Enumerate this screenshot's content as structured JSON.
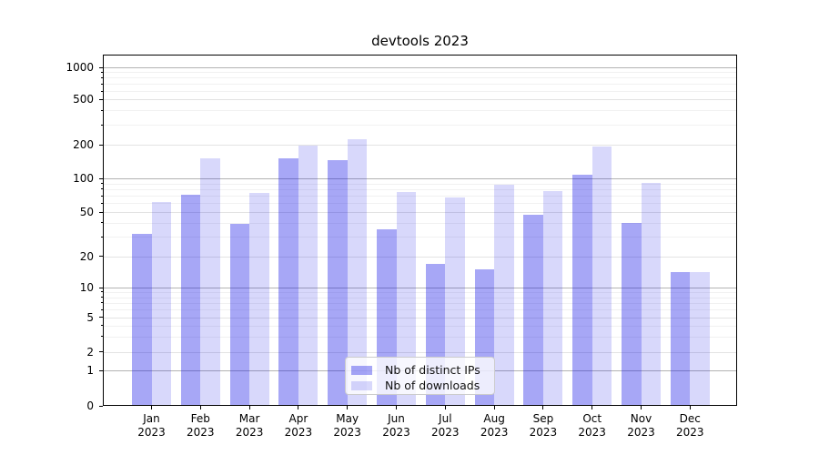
{
  "title": "devtools 2023",
  "chart_data": {
    "type": "bar",
    "title": "devtools 2023",
    "categories": [
      "Jan 2023",
      "Feb 2023",
      "Mar 2023",
      "Apr 2023",
      "May 2023",
      "Jun 2023",
      "Jul 2023",
      "Aug 2023",
      "Sep 2023",
      "Oct 2023",
      "Nov 2023",
      "Dec 2023"
    ],
    "x_tick_months": [
      "Jan",
      "Feb",
      "Mar",
      "Apr",
      "May",
      "Jun",
      "Jul",
      "Aug",
      "Sep",
      "Oct",
      "Nov",
      "Dec"
    ],
    "x_tick_year": "2023",
    "series": [
      {
        "name": "Nb of distinct IPs",
        "color_hex": "#a7a7f6",
        "fill": "rgba(10,10,230,0.36)",
        "values": [
          32,
          71,
          39,
          151,
          146,
          35,
          17,
          15,
          47,
          108,
          40,
          14
        ]
      },
      {
        "name": "Nb of downloads",
        "color_hex": "#d8d8fb",
        "fill": "rgba(10,10,230,0.16)",
        "values": [
          62,
          152,
          74,
          195,
          225,
          76,
          67,
          88,
          77,
          192,
          91,
          14
        ]
      }
    ],
    "y_axis": {
      "scale": "symlog",
      "major_ticks": [
        0,
        1,
        2,
        5,
        10,
        20,
        50,
        100,
        200,
        500,
        1000
      ],
      "minor_ticks": [
        3,
        4,
        6,
        7,
        8,
        9,
        30,
        40,
        60,
        70,
        80,
        90,
        300,
        400,
        600,
        700,
        800,
        900
      ],
      "range": [
        0,
        1300
      ],
      "grid": true
    },
    "legend": {
      "position": "lower center",
      "entries": [
        "Nb of distinct IPs",
        "Nb of downloads"
      ]
    }
  }
}
